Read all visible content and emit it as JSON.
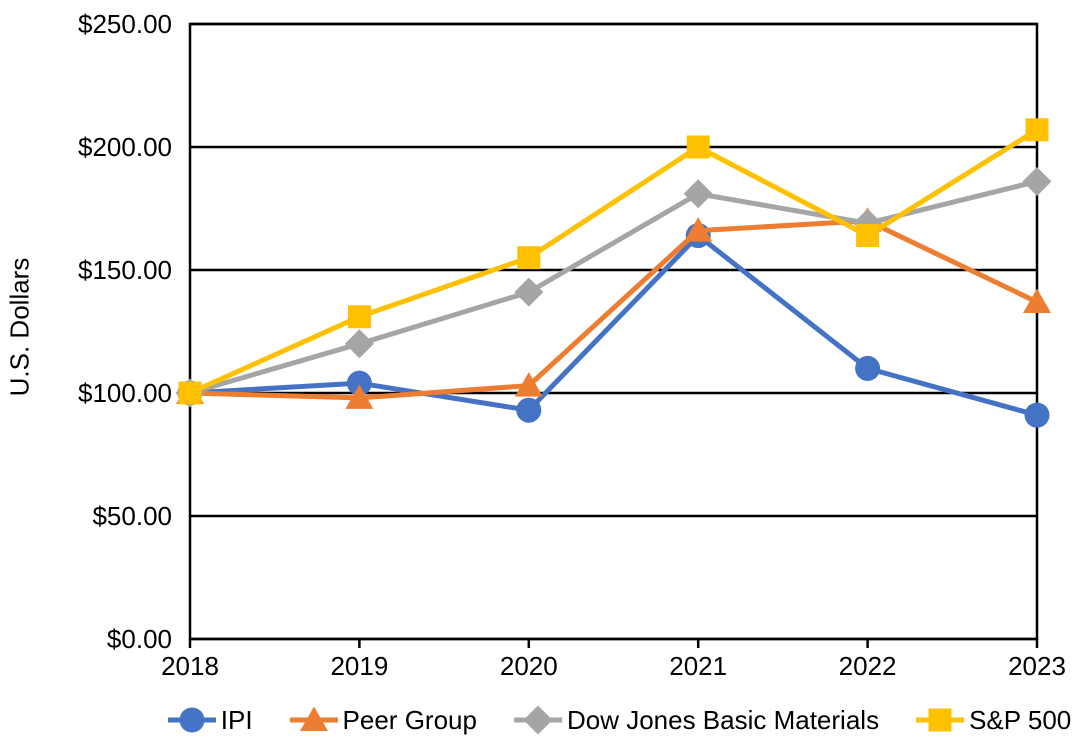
{
  "chart_data": {
    "type": "line",
    "title": "",
    "xlabel": "",
    "ylabel": "U.S. Dollars",
    "categories": [
      "2018",
      "2019",
      "2020",
      "2021",
      "2022",
      "2023"
    ],
    "series": [
      {
        "name": "IPI",
        "color": "#4472C4",
        "marker": "circle",
        "values": [
          100,
          104,
          93,
          164,
          110,
          91
        ]
      },
      {
        "name": "Peer Group",
        "color": "#ED7D31",
        "marker": "triangle",
        "values": [
          100,
          98,
          103,
          166,
          170,
          137
        ]
      },
      {
        "name": "Dow Jones Basic Materials",
        "color": "#A5A5A5",
        "marker": "diamond",
        "values": [
          100,
          120,
          141,
          181,
          169,
          186
        ]
      },
      {
        "name": "S&P 500",
        "color": "#FFC000",
        "marker": "square",
        "values": [
          100,
          131,
          155,
          200,
          164,
          207
        ]
      }
    ],
    "ylim": [
      0,
      250
    ],
    "ytick_step": 50,
    "ytick_labels": [
      "$0.00",
      "$50.00",
      "$100.00",
      "$150.00",
      "$200.00",
      "$250.00"
    ],
    "grid": "horizontal",
    "legend_position": "bottom",
    "axis_color": "#000000",
    "plot_background": "#ffffff"
  }
}
